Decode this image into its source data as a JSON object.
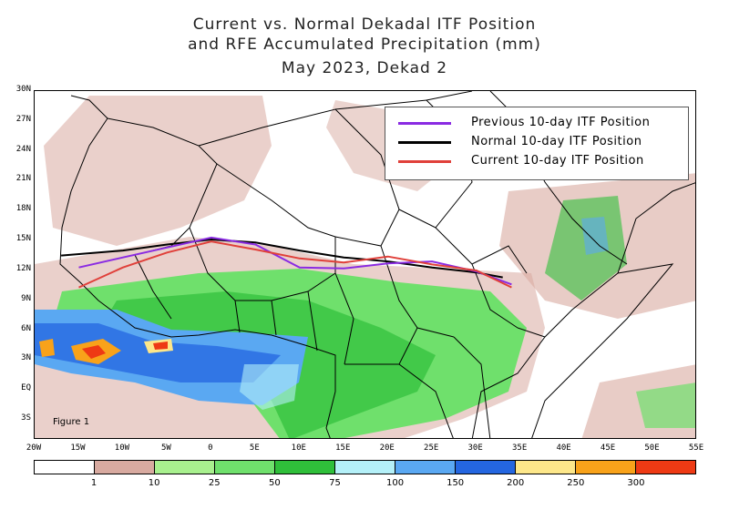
{
  "title": {
    "line1": "Current vs. Normal Dekadal ITF Position",
    "line2": "and RFE Accumulated Precipitation (mm)",
    "line3": "May 2023, Dekad 2"
  },
  "figure_label": "Figure 1",
  "axes": {
    "lat_labels": [
      "30N",
      "27N",
      "24N",
      "21N",
      "18N",
      "15N",
      "12N",
      "9N",
      "6N",
      "3N",
      "EQ",
      "3S"
    ],
    "lon_labels": [
      "20W",
      "15W",
      "10W",
      "5W",
      "0",
      "5E",
      "10E",
      "15E",
      "20E",
      "25E",
      "30E",
      "35E",
      "40E",
      "45E",
      "50E",
      "55E"
    ],
    "lon_range": [
      -20,
      55
    ],
    "lat_range": [
      -5,
      30
    ]
  },
  "legend": {
    "items": [
      {
        "label": "Previous 10-day ITF Position",
        "color": "#8a2be2"
      },
      {
        "label": "Normal 10-day ITF Position",
        "color": "#000000"
      },
      {
        "label": "Current 10-day ITF Position",
        "color": "#e0403a"
      }
    ]
  },
  "colorbar": {
    "colors": [
      "#ffffff",
      "#d8aaa0",
      "#a8f08e",
      "#6fe06c",
      "#2fbf3a",
      "#b4f0f8",
      "#5aa8f2",
      "#2466e0",
      "#fde78a",
      "#f8a21a",
      "#ee3a14"
    ],
    "labels": [
      "1",
      "10",
      "25",
      "50",
      "75",
      "100",
      "150",
      "200",
      "250",
      "300"
    ]
  },
  "itf_lines": {
    "normal": {
      "lon": [
        -17,
        -10,
        -5,
        0,
        5,
        10,
        15,
        20,
        25,
        30,
        33
      ],
      "lat": [
        13.5,
        14.0,
        14.6,
        15.1,
        14.8,
        14.0,
        13.3,
        12.9,
        12.3,
        11.8,
        11.3
      ]
    },
    "current": {
      "lon": [
        -15,
        -10,
        -5,
        0,
        5,
        10,
        15,
        20,
        25,
        30,
        34
      ],
      "lat": [
        10.3,
        12.3,
        13.8,
        14.9,
        14.1,
        13.2,
        12.8,
        13.4,
        12.6,
        12.0,
        10.3
      ]
    },
    "previous": {
      "lon": [
        -15,
        -10,
        -5,
        0,
        5,
        10,
        15,
        20,
        25,
        30,
        34
      ],
      "lat": [
        12.3,
        13.3,
        14.3,
        15.3,
        14.6,
        12.3,
        12.2,
        12.7,
        12.9,
        11.9,
        10.6
      ]
    }
  }
}
